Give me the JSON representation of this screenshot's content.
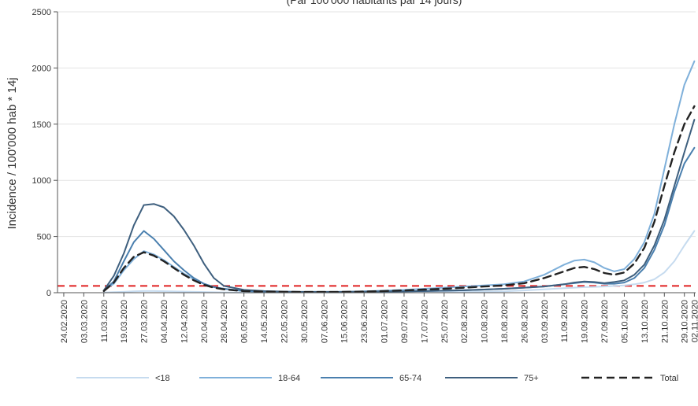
{
  "chart_data": {
    "type": "line",
    "title": "",
    "subtitle": "(Par 100'000 habitants par 14 jours)",
    "xlabel": "",
    "ylabel": "Incidence / 100'000 hab * 14j",
    "ylim": [
      0,
      2500
    ],
    "yticks": [
      0,
      500,
      1000,
      1500,
      2000,
      2500
    ],
    "x_tick_labels": [
      "24.02.2020",
      "03.03.2020",
      "11.03.2020",
      "19.03.2020",
      "27.03.2020",
      "04.04.2020",
      "12.04.2020",
      "20.04.2020",
      "28.04.2020",
      "06.05.2020",
      "14.05.2020",
      "22.05.2020",
      "30.05.2020",
      "07.06.2020",
      "15.06.2020",
      "23.06.2020",
      "01.07.2020",
      "09.07.2020",
      "17.07.2020",
      "25.07.2020",
      "02.08.2020",
      "10.08.2020",
      "18.08.2020",
      "26.08.2020",
      "03.09.2020",
      "11.09.2020",
      "19.09.2020",
      "27.09.2020",
      "05.10.2020",
      "13.10.2020",
      "21.10.2020",
      "29.10.2020",
      "02.11.2020"
    ],
    "x": [
      "11.03.2020",
      "15.03.2020",
      "19.03.2020",
      "23.03.2020",
      "27.03.2020",
      "31.03.2020",
      "04.04.2020",
      "08.04.2020",
      "12.04.2020",
      "16.04.2020",
      "20.04.2020",
      "24.04.2020",
      "28.04.2020",
      "06.05.2020",
      "14.05.2020",
      "22.05.2020",
      "30.05.2020",
      "07.06.2020",
      "15.06.2020",
      "23.06.2020",
      "01.07.2020",
      "09.07.2020",
      "17.07.2020",
      "25.07.2020",
      "02.08.2020",
      "10.08.2020",
      "18.08.2020",
      "26.08.2020",
      "03.09.2020",
      "11.09.2020",
      "15.09.2020",
      "19.09.2020",
      "23.09.2020",
      "27.09.2020",
      "01.10.2020",
      "05.10.2020",
      "09.10.2020",
      "13.10.2020",
      "17.10.2020",
      "21.10.2020",
      "25.10.2020",
      "29.10.2020",
      "02.11.2020"
    ],
    "series": [
      {
        "name": "<18",
        "color": "#c6dbef",
        "dash": false,
        "values": [
          2,
          5,
          8,
          12,
          15,
          15,
          13,
          11,
          10,
          8,
          6,
          4,
          3,
          2,
          2,
          2,
          2,
          2,
          2,
          3,
          3,
          4,
          5,
          6,
          8,
          10,
          12,
          20,
          30,
          40,
          45,
          50,
          52,
          55,
          60,
          65,
          75,
          90,
          120,
          180,
          280,
          420,
          550
        ]
      },
      {
        "name": "18-64",
        "color": "#7fb0da",
        "dash": false,
        "values": [
          20,
          80,
          200,
          300,
          370,
          340,
          290,
          230,
          170,
          120,
          80,
          50,
          35,
          15,
          10,
          8,
          6,
          6,
          8,
          12,
          18,
          25,
          35,
          45,
          55,
          65,
          75,
          100,
          160,
          250,
          285,
          295,
          270,
          220,
          190,
          210,
          300,
          450,
          700,
          1100,
          1500,
          1850,
          2060
        ]
      },
      {
        "name": "65-74",
        "color": "#4a7fae",
        "dash": false,
        "values": [
          20,
          100,
          280,
          450,
          550,
          480,
          380,
          280,
          200,
          130,
          80,
          50,
          35,
          15,
          10,
          6,
          4,
          4,
          5,
          8,
          10,
          12,
          15,
          18,
          22,
          28,
          35,
          45,
          55,
          75,
          85,
          95,
          90,
          80,
          80,
          90,
          130,
          220,
          380,
          600,
          900,
          1150,
          1290
        ]
      },
      {
        "name": "75+",
        "color": "#3e5f7e",
        "dash": false,
        "values": [
          20,
          150,
          350,
          600,
          780,
          790,
          760,
          680,
          560,
          420,
          260,
          130,
          60,
          25,
          15,
          10,
          8,
          8,
          8,
          10,
          12,
          12,
          15,
          18,
          22,
          28,
          35,
          45,
          55,
          75,
          90,
          100,
          95,
          85,
          95,
          110,
          160,
          250,
          420,
          650,
          950,
          1250,
          1540
        ]
      },
      {
        "name": "Total",
        "color": "#222222",
        "dash": true,
        "values": [
          15,
          90,
          220,
          320,
          360,
          330,
          280,
          220,
          160,
          110,
          70,
          45,
          30,
          15,
          10,
          8,
          6,
          6,
          7,
          10,
          15,
          20,
          28,
          35,
          45,
          55,
          65,
          85,
          130,
          190,
          220,
          230,
          210,
          175,
          160,
          180,
          260,
          400,
          630,
          950,
          1250,
          1500,
          1660
        ]
      }
    ],
    "threshold": {
      "value": 60,
      "color": "#e02020",
      "dash": true
    },
    "grid": "horizontal",
    "legend_position": "bottom"
  }
}
